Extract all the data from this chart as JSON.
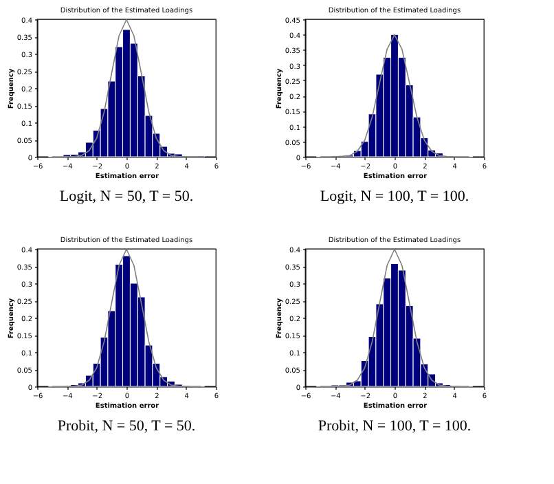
{
  "chart_data": [
    {
      "type": "histogram",
      "title": "Distribution of the Estimated Loadings",
      "xlabel": "Estimation error",
      "ylabel": "Frequency",
      "annotations": [
        "Logit, N = 50, T = 50."
      ],
      "color": "#00007f",
      "bins": [
        -5.25,
        -4.75,
        -4.25,
        -3.75,
        -3.25,
        -2.75,
        -2.25,
        -1.75,
        -1.25,
        -0.75,
        -0.25,
        0.25,
        0.75,
        1.25,
        1.75,
        2.25,
        2.75,
        3.25,
        3.75,
        4.25,
        4.75,
        5.25
      ],
      "values": [
        0.001,
        0.001,
        0.006,
        0.007,
        0.014,
        0.042,
        0.077,
        0.14,
        0.22,
        0.32,
        0.37,
        0.33,
        0.235,
        0.12,
        0.068,
        0.03,
        0.01,
        0.008,
        0.002,
        0.002,
        0.003
      ],
      "series": [
        {
          "type": "line",
          "color": "#808080",
          "x": [
            -5,
            -4.5,
            -4,
            -3.5,
            -3,
            -2.5,
            -2,
            -1.5,
            -1,
            -0.5,
            0,
            0.5,
            1,
            1.5,
            2,
            2.5,
            3,
            3.5,
            4,
            4.5,
            5
          ],
          "values": [
            0,
            0,
            0,
            0.001,
            0.004,
            0.018,
            0.054,
            0.13,
            0.242,
            0.352,
            0.399,
            0.352,
            0.242,
            0.13,
            0.054,
            0.018,
            0.004,
            0.001,
            0,
            0,
            0
          ]
        }
      ],
      "xlim": [
        -6,
        6
      ],
      "xticks": [
        -6,
        -4,
        -2,
        0,
        2,
        4,
        6
      ],
      "ylim": [
        0,
        0.4
      ],
      "yticks": [
        0,
        0.05,
        0.1,
        0.15,
        0.2,
        0.25,
        0.3,
        0.35,
        0.4
      ],
      "grid": false
    },
    {
      "type": "histogram",
      "title": "Distribution of the Estimated Loadings",
      "xlabel": "Estimation error",
      "ylabel": "Frequency",
      "annotations": [
        "Logit, N = 100, T = 100."
      ],
      "color": "#00007f",
      "bins": [
        -5.25,
        -4.75,
        -4.25,
        -3.75,
        -3.25,
        -2.75,
        -2.25,
        -1.75,
        -1.25,
        -0.75,
        -0.25,
        0.25,
        0.75,
        1.25,
        1.75,
        2.25,
        2.75,
        3.25,
        3.75,
        4.25,
        4.75,
        5.25
      ],
      "values": [
        0.001,
        0.001,
        0.003,
        0.004,
        0.005,
        0.02,
        0.05,
        0.14,
        0.27,
        0.325,
        0.4,
        0.325,
        0.235,
        0.13,
        0.062,
        0.022,
        0.012,
        0.001,
        0.001,
        0.001,
        0.001
      ],
      "series": [
        {
          "type": "line",
          "color": "#808080",
          "x": [
            -5,
            -4.5,
            -4,
            -3.5,
            -3,
            -2.5,
            -2,
            -1.5,
            -1,
            -0.5,
            0,
            0.5,
            1,
            1.5,
            2,
            2.5,
            3,
            3.5,
            4,
            4.5,
            5
          ],
          "values": [
            0,
            0,
            0,
            0.001,
            0.004,
            0.018,
            0.054,
            0.13,
            0.242,
            0.352,
            0.399,
            0.352,
            0.242,
            0.13,
            0.054,
            0.018,
            0.004,
            0.001,
            0,
            0,
            0
          ]
        }
      ],
      "xlim": [
        -6,
        6
      ],
      "xticks": [
        -6,
        -4,
        -2,
        0,
        2,
        4,
        6
      ],
      "ylim": [
        0,
        0.45
      ],
      "yticks": [
        0,
        0.05,
        0.1,
        0.15,
        0.2,
        0.25,
        0.3,
        0.35,
        0.4,
        0.45
      ],
      "grid": false
    },
    {
      "type": "histogram",
      "title": "Distribution of the Estimated Loadings",
      "xlabel": "Estimation error",
      "ylabel": "Frequency",
      "annotations": [
        "Probit, N = 50, T = 50."
      ],
      "color": "#00007f",
      "bins": [
        -5.25,
        -4.75,
        -4.25,
        -3.75,
        -3.25,
        -2.75,
        -2.25,
        -1.75,
        -1.25,
        -0.75,
        -0.25,
        0.25,
        0.75,
        1.25,
        1.75,
        2.25,
        2.75,
        3.25,
        3.75,
        4.25,
        4.75,
        5.25
      ],
      "values": [
        0.001,
        0.001,
        0.002,
        0.005,
        0.01,
        0.032,
        0.067,
        0.143,
        0.22,
        0.355,
        0.38,
        0.3,
        0.26,
        0.12,
        0.067,
        0.028,
        0.015,
        0.006,
        0.003,
        0.001,
        0.001
      ],
      "series": [
        {
          "type": "line",
          "color": "#808080",
          "x": [
            -5,
            -4.5,
            -4,
            -3.5,
            -3,
            -2.5,
            -2,
            -1.5,
            -1,
            -0.5,
            0,
            0.5,
            1,
            1.5,
            2,
            2.5,
            3,
            3.5,
            4,
            4.5,
            5
          ],
          "values": [
            0,
            0,
            0,
            0.001,
            0.004,
            0.018,
            0.054,
            0.13,
            0.242,
            0.352,
            0.399,
            0.352,
            0.242,
            0.13,
            0.054,
            0.018,
            0.004,
            0.001,
            0,
            0,
            0
          ]
        }
      ],
      "xlim": [
        -6,
        6
      ],
      "xticks": [
        -6,
        -4,
        -2,
        0,
        2,
        4,
        6
      ],
      "ylim": [
        0,
        0.4
      ],
      "yticks": [
        0,
        0.05,
        0.1,
        0.15,
        0.2,
        0.25,
        0.3,
        0.35,
        0.4
      ],
      "grid": false
    },
    {
      "type": "histogram",
      "title": "Distribution of the Estimated Loadings",
      "xlabel": "Estimation error",
      "ylabel": "Frequency",
      "annotations": [
        "Probit, N = 100, T = 100."
      ],
      "color": "#00007f",
      "bins": [
        -5.25,
        -4.75,
        -4.25,
        -3.75,
        -3.25,
        -2.75,
        -2.25,
        -1.75,
        -1.25,
        -0.75,
        -0.25,
        0.25,
        0.75,
        1.25,
        1.75,
        2.25,
        2.75,
        3.25,
        3.75,
        4.25,
        4.75,
        5.25
      ],
      "values": [
        0.001,
        0.001,
        0.004,
        0.004,
        0.012,
        0.016,
        0.075,
        0.145,
        0.24,
        0.315,
        0.357,
        0.338,
        0.235,
        0.14,
        0.065,
        0.036,
        0.01,
        0.005,
        0.002,
        0.001,
        0.001
      ],
      "series": [
        {
          "type": "line",
          "color": "#808080",
          "x": [
            -5,
            -4.5,
            -4,
            -3.5,
            -3,
            -2.5,
            -2,
            -1.5,
            -1,
            -0.5,
            0,
            0.5,
            1,
            1.5,
            2,
            2.5,
            3,
            3.5,
            4,
            4.5,
            5
          ],
          "values": [
            0,
            0,
            0,
            0.001,
            0.004,
            0.018,
            0.054,
            0.13,
            0.242,
            0.352,
            0.399,
            0.352,
            0.242,
            0.13,
            0.054,
            0.018,
            0.004,
            0.001,
            0,
            0,
            0
          ]
        }
      ],
      "xlim": [
        -6,
        6
      ],
      "xticks": [
        -6,
        -4,
        -2,
        0,
        2,
        4,
        6
      ],
      "ylim": [
        0,
        0.4
      ],
      "yticks": [
        0,
        0.05,
        0.1,
        0.15,
        0.2,
        0.25,
        0.3,
        0.35,
        0.4
      ],
      "grid": false
    }
  ]
}
